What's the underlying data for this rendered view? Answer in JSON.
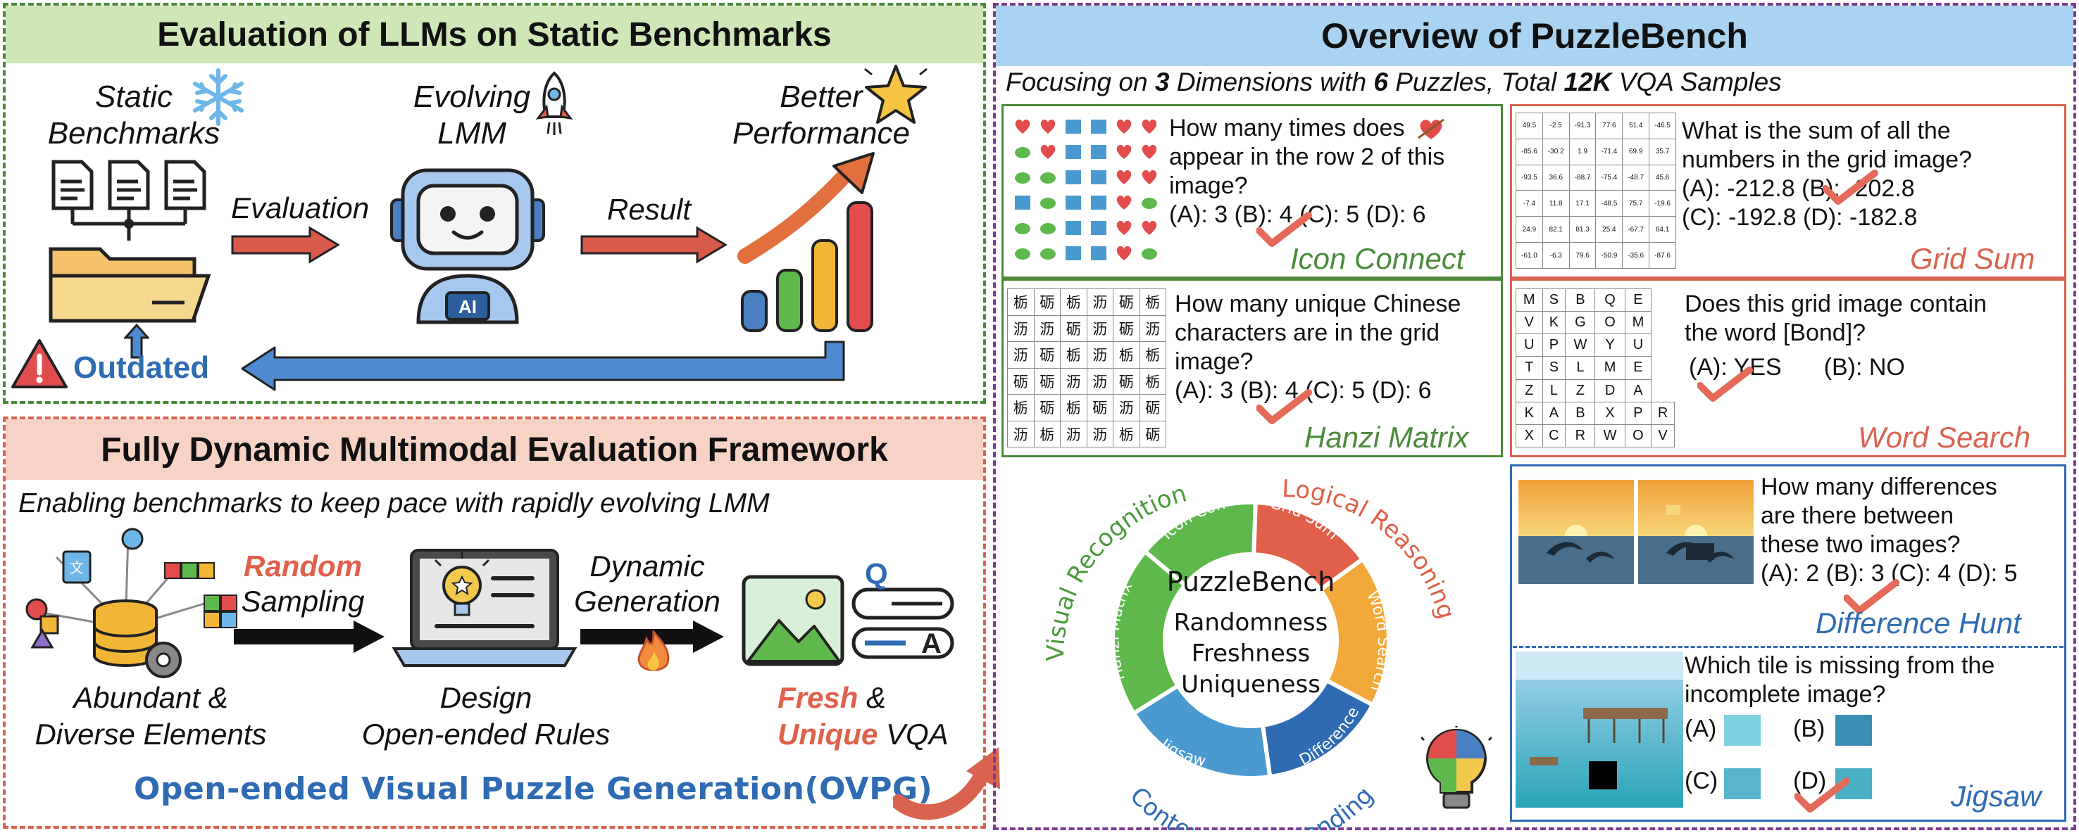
{
  "left_top": {
    "title": "Evaluation of LLMs on Static Benchmarks",
    "static_benchmarks": [
      "Static",
      "Benchmarks"
    ],
    "evolving_lmm": [
      "Evolving",
      "LMM"
    ],
    "better_performance": [
      "Better",
      "Performance"
    ],
    "evaluation": "Evaluation",
    "result": "Result",
    "outdated": "Outdated",
    "robot_badge": "AI"
  },
  "left_bottom": {
    "title": "Fully Dynamic Multimodal Evaluation Framework",
    "subtitle": "Enabling benchmarks to keep pace with rapidly evolving LMM",
    "random": "Random",
    "sampling": "Sampling",
    "dynamic": "Dynamic",
    "generation": "Generation",
    "abundant": [
      "Abundant &",
      "Diverse Elements"
    ],
    "design": [
      "Design",
      "Open-ended Rules"
    ],
    "fresh": "Fresh",
    "amp": " &",
    "unique": "Unique",
    "vqa": " VQA",
    "ovpg": "Open-ended Visual Puzzle Generation(OVPG)",
    "qa_q": "Q",
    "qa_a": "A"
  },
  "right": {
    "title": "Overview of PuzzleBench",
    "sub_a": "Focusing on ",
    "sub_b": "3",
    "sub_c": " Dimensions with ",
    "sub_d": "6",
    "sub_e": " Puzzles, Total ",
    "sub_f": "12K",
    "sub_g": " VQA Samples",
    "icon_connect": {
      "q1": "How many times does",
      "q2": "appear in the row 2 of this",
      "q3": "image?",
      "opts": "(A): 3 (B): 4 (C): 5 (D): 6",
      "label": "Icon Connect"
    },
    "grid_sum": {
      "q1": "What is the sum of all the",
      "q2": "numbers in the grid image?",
      "opts1": "(A): -212.8 (B): -202.8",
      "opts2": "(C): -192.8 (D): -182.8",
      "label": "Grid Sum",
      "grid": [
        [
          "49.5",
          "-2.5",
          "-91.3",
          "77.6",
          "51.4",
          "-46.5"
        ],
        [
          "-85.6",
          "-30.2",
          "1.9",
          "-71.4",
          "69.9",
          "35.7"
        ],
        [
          "-93.5",
          "36.6",
          "-88.7",
          "-75.4",
          "-48.7",
          "45.6"
        ],
        [
          "-7.4",
          "11.8",
          "17.1",
          "-48.5",
          "75.7",
          "-19.6"
        ],
        [
          "24.9",
          "82.1",
          "81.3",
          "25.4",
          "-67.7",
          "84.1"
        ],
        [
          "-61.0",
          "-6.3",
          "79.6",
          "-50.9",
          "-35.6",
          "-87.6"
        ]
      ]
    },
    "hanzi": {
      "q1": "How many unique Chinese",
      "q2": "characters are in the grid",
      "q3": "image?",
      "opts": "(A): 3 (B): 4 (C): 5 (D): 6",
      "label": "Hanzi Matrix",
      "grid": [
        [
          "栃",
          "砺",
          "栃",
          "沥",
          "砺",
          "栃"
        ],
        [
          "沥",
          "沥",
          "砺",
          "沥",
          "砺",
          "沥"
        ],
        [
          "沥",
          "砺",
          "栃",
          "沥",
          "栃",
          "栃"
        ],
        [
          "砺",
          "砺",
          "沥",
          "沥",
          "砺",
          "栃"
        ],
        [
          "栃",
          "砺",
          "栃",
          "砺",
          "沥",
          "砺"
        ],
        [
          "沥",
          "栃",
          "沥",
          "沥",
          "栃",
          "砺"
        ]
      ]
    },
    "word_search": {
      "q1": "Does this grid image contain",
      "q2": "the word [Bond]?",
      "opt_a": "(A): YES",
      "opt_b": "(B): NO",
      "label": "Word Search",
      "grid": [
        [
          "M",
          "S",
          "B",
          "Q",
          "E"
        ],
        [
          "V",
          "K",
          "G",
          "O",
          "M"
        ],
        [
          "U",
          "P",
          "W",
          "Y",
          "U"
        ],
        [
          "T",
          "S",
          "L",
          "M",
          "E"
        ],
        [
          "Z",
          "L",
          "Z",
          "D",
          "A"
        ],
        [
          "K",
          "A",
          "B",
          "X",
          "P",
          "R"
        ],
        [
          "X",
          "C",
          "R",
          "W",
          "O",
          "V"
        ]
      ]
    },
    "difference": {
      "q1": "How many differences",
      "q2": "are there between",
      "q3": "these two images?",
      "opts": "(A): 2 (B): 3 (C): 4 (D): 5",
      "label": "Difference Hunt"
    },
    "jigsaw": {
      "q1": "Which tile is missing from the",
      "q2": "incomplete image?",
      "oa": "(A)",
      "ob": "(B)",
      "oc": "(C)",
      "od": "(D)",
      "label": "Jigsaw"
    },
    "wheel": {
      "center_title": "PuzzleBench",
      "center_lines": [
        "Randomness",
        "Freshness",
        "Uniqueness"
      ],
      "segments": [
        "Icon Connect",
        "Grid Sum",
        "Word Search",
        "Difference Hunt",
        "Jigsaw",
        "Hanzi Matrix"
      ],
      "arc_visual": "Visual Recognition",
      "arc_logical": "Logical Reasoning",
      "arc_context": "Context Understanding"
    }
  },
  "colors": {
    "green_border": "#4a8a3a",
    "green_header": "#cfe6b7",
    "red_border": "#d9634f",
    "peach_header": "#f6d3c4",
    "purple_border": "#7b3c8f",
    "blue_header": "#a9d3f0",
    "arrow_red": "#d85a4a",
    "arrow_blue": "#4f8ad0",
    "text_blue": "#2f6bb3",
    "text_red": "#e0604a",
    "check": "#e46a5a"
  }
}
